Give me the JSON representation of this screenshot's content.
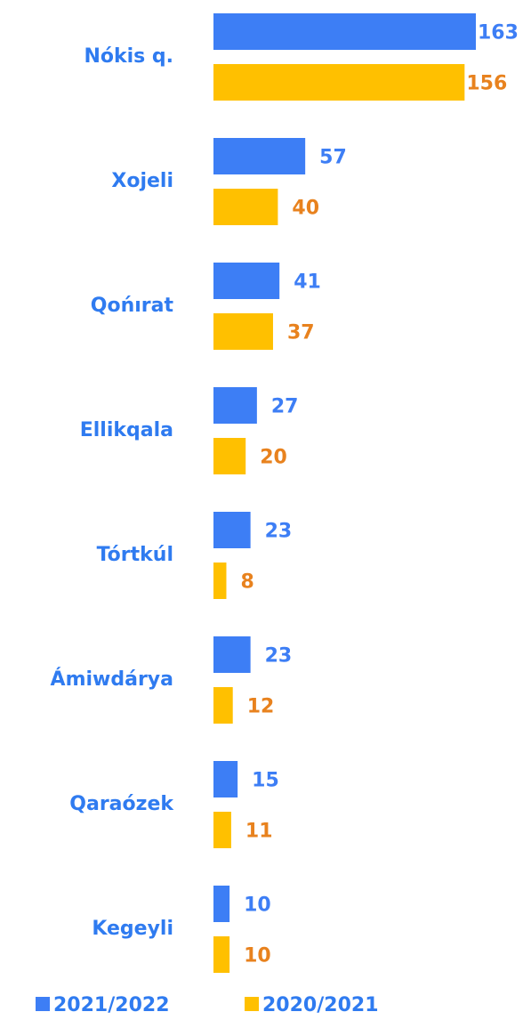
{
  "chart_data": {
    "type": "hbar",
    "categories": [
      "Nókis q.",
      "Xojeli",
      "Qońırat",
      "Ellikqala",
      "Tórtkúl",
      "Ámiwdárya",
      "Qaraózek",
      "Kegeyli"
    ],
    "series": [
      {
        "name": "2021/2022",
        "color": "#3d7ef5",
        "label_color": "#3d7ef5",
        "values": [
          163,
          57,
          41,
          27,
          23,
          23,
          15,
          10
        ]
      },
      {
        "name": "2020/2021",
        "color": "#ffc000",
        "label_color": "#e8821e",
        "values": [
          156,
          40,
          37,
          20,
          8,
          12,
          11,
          10
        ]
      }
    ],
    "xlim": [
      0,
      163
    ]
  }
}
